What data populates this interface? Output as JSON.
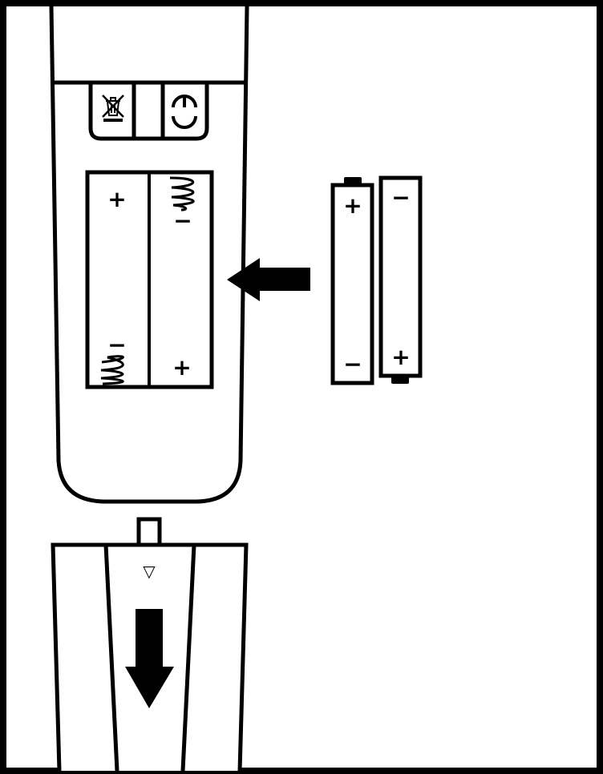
{
  "diagram": {
    "title": "",
    "remote": {
      "regulatory_marks": [
        "weee-bin-mark",
        "ce-mark"
      ],
      "compartment": {
        "left_slot": {
          "top_symbol": "+",
          "bottom_symbol": "−"
        },
        "right_slot": {
          "top_symbol": "−",
          "bottom_symbol": "+"
        }
      }
    },
    "batteries": [
      {
        "top_symbol": "+",
        "bottom_symbol": "−"
      },
      {
        "top_symbol": "−",
        "bottom_symbol": "+"
      }
    ],
    "cover": {
      "tab_symbol": "▽"
    },
    "arrows": {
      "insert_direction": "left",
      "cover_slide_direction": "down"
    },
    "colors": {
      "line": "#000000",
      "background": "#ffffff"
    }
  }
}
